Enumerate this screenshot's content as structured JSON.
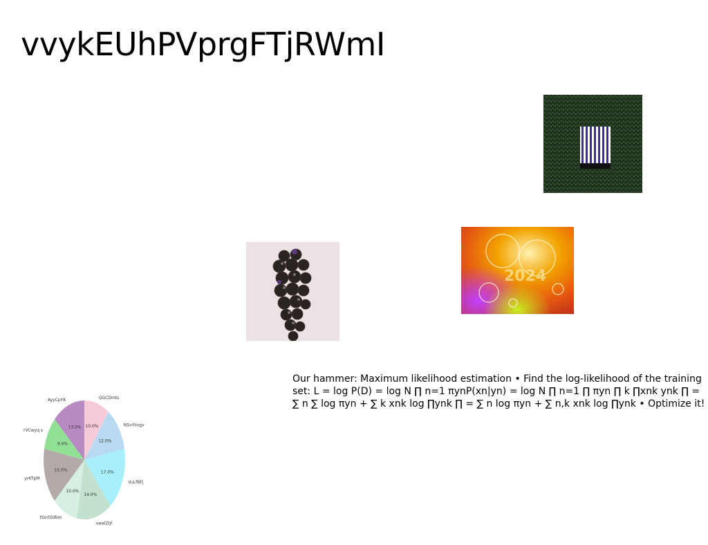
{
  "slide": {
    "title": "vvykEUhPVprgFTjRWmI",
    "body_text": "Our hammer: Maximum likelihood estimation • Find the log-likelihood of the training set: L = log P(D) = log N ∏ n=1 πynP(xn|yn) = log N ∏ n=1 ∏ πyn ∏ k ∏xnk ynk ∏ = ∑ n ∑ log πyn + ∑ k xnk log ∏ynk ∏ = ∑ n log πyn + ∑ n,k xnk log ∏ynk • Optimize it! (π∏ c , ∏∏ ck) ="
  },
  "images": {
    "window": "striped-window-in-hedge",
    "grapes": "dark-grape-cluster",
    "ornaments": "2024-glass-ornaments"
  },
  "chart_data": {
    "type": "pie",
    "title": "",
    "slices": [
      {
        "label": "QGCDmts",
        "value": 10.0,
        "pct_label": "10.0%",
        "color": "#f7cad9"
      },
      {
        "label": "NSvYIivgv",
        "value": 12.0,
        "pct_label": "12.0%",
        "color": "#b9d9f1"
      },
      {
        "label": "VuLfBFj",
        "value": 17.0,
        "pct_label": "17.0%",
        "color": "#a7effa"
      },
      {
        "label": "vwalZIjf",
        "value": 14.0,
        "pct_label": "14.0%",
        "color": "#c2e1cf"
      },
      {
        "label": "tSorlGdbm",
        "value": 10.0,
        "pct_label": "10.0%",
        "color": "#d5efe1"
      },
      {
        "label": "yrKTpM",
        "value": 15.0,
        "pct_label": "15.0%",
        "color": "#b3a9a9"
      },
      {
        "label": "rVCwyq s",
        "value": 9.0,
        "pct_label": "9.0%",
        "color": "#92e096"
      },
      {
        "label": "AyyCpYK",
        "value": 13.0,
        "pct_label": "13.0%",
        "color": "#b88ac2"
      }
    ]
  }
}
